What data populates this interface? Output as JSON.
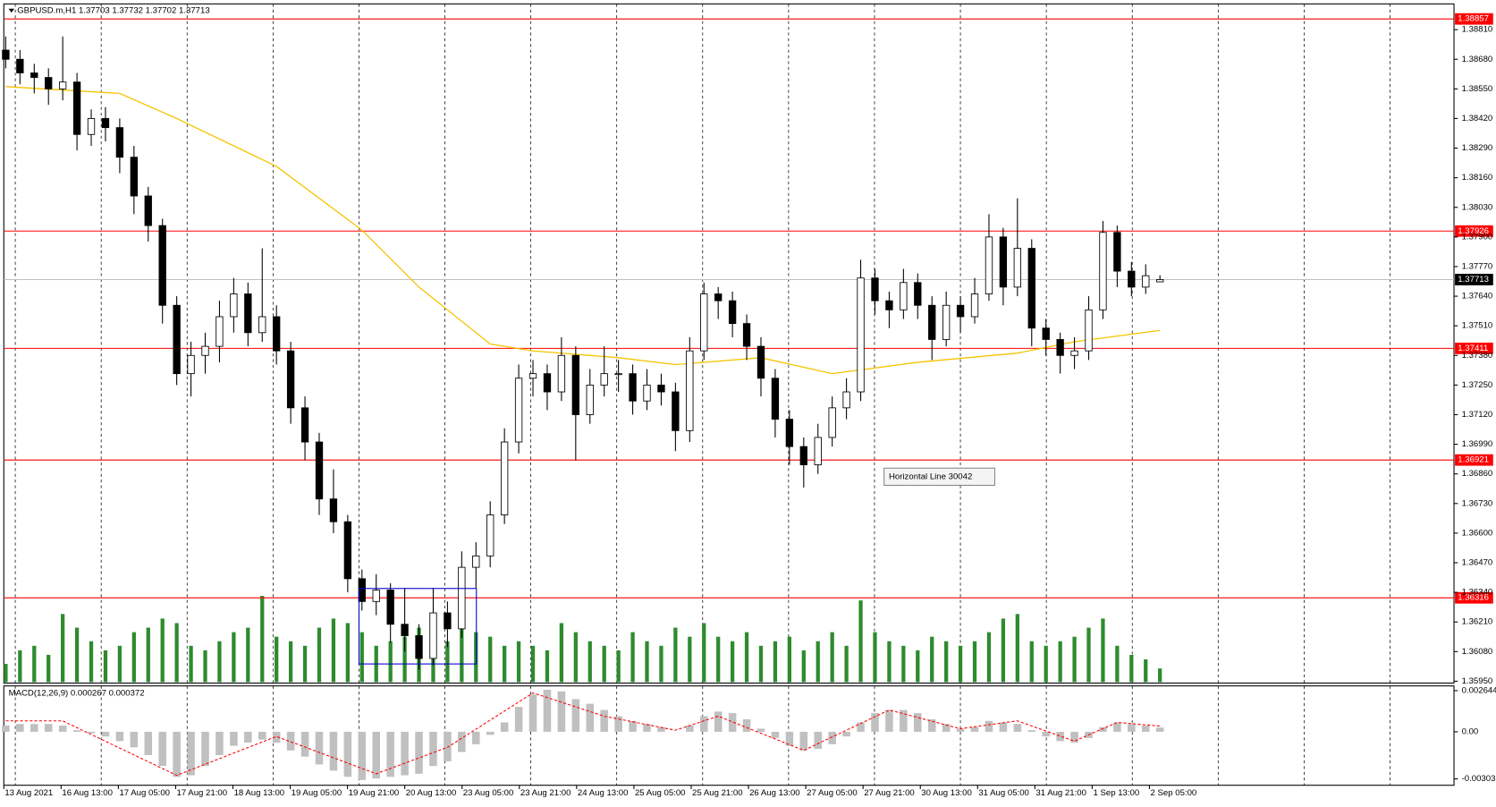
{
  "chart_data": {
    "type": "candlestick",
    "header": "GBPUSD.m,H1  1.37703 1.37732 1.37702 1.37713",
    "macd_title": "MACD(12,26,9) 0.000267 0.000372",
    "annotation": "Horizontal Line 30042",
    "x_labels": [
      "13 Aug 2021",
      "16 Aug 13:00",
      "17 Aug 05:00",
      "17 Aug 21:00",
      "18 Aug 13:00",
      "19 Aug 05:00",
      "19 Aug 21:00",
      "20 Aug 13:00",
      "23 Aug 05:00",
      "23 Aug 21:00",
      "24 Aug 13:00",
      "25 Aug 05:00",
      "25 Aug 21:00",
      "26 Aug 13:00",
      "27 Aug 05:00",
      "27 Aug 21:00",
      "30 Aug 13:00",
      "31 Aug 05:00",
      "31 Aug 21:00",
      "1 Sep 13:00",
      "2 Sep 05:00"
    ],
    "candles": [
      [
        1.3872,
        1.3878,
        1.3864,
        1.3868
      ],
      [
        1.3868,
        1.3872,
        1.3857,
        1.3862
      ],
      [
        1.3862,
        1.3866,
        1.3853,
        1.386
      ],
      [
        1.386,
        1.3864,
        1.3848,
        1.3855
      ],
      [
        1.3855,
        1.3878,
        1.385,
        1.3858
      ],
      [
        1.3858,
        1.3862,
        1.3828,
        1.3835
      ],
      [
        1.3835,
        1.3846,
        1.383,
        1.3842
      ],
      [
        1.3842,
        1.3847,
        1.3832,
        1.3838
      ],
      [
        1.3838,
        1.3842,
        1.3818,
        1.3825
      ],
      [
        1.3825,
        1.383,
        1.38,
        1.3808
      ],
      [
        1.3808,
        1.3812,
        1.3788,
        1.3795
      ],
      [
        1.3795,
        1.3798,
        1.3752,
        1.376
      ],
      [
        1.376,
        1.3764,
        1.3725,
        1.373
      ],
      [
        1.373,
        1.3744,
        1.372,
        1.3738
      ],
      [
        1.3738,
        1.3748,
        1.373,
        1.3742
      ],
      [
        1.3742,
        1.3762,
        1.3735,
        1.3755
      ],
      [
        1.3755,
        1.3772,
        1.3748,
        1.3765
      ],
      [
        1.3765,
        1.377,
        1.3742,
        1.3748
      ],
      [
        1.3748,
        1.3785,
        1.3744,
        1.3755
      ],
      [
        1.3755,
        1.376,
        1.3734,
        1.374
      ],
      [
        1.374,
        1.3744,
        1.3708,
        1.3715
      ],
      [
        1.3715,
        1.372,
        1.3692,
        1.37
      ],
      [
        1.37,
        1.3704,
        1.3668,
        1.3675
      ],
      [
        1.3675,
        1.3688,
        1.366,
        1.3665
      ],
      [
        1.3665,
        1.3668,
        1.3634,
        1.364
      ],
      [
        1.364,
        1.3644,
        1.3626,
        1.363
      ],
      [
        1.363,
        1.3642,
        1.3624,
        1.3635
      ],
      [
        1.3635,
        1.3638,
        1.3612,
        1.362
      ],
      [
        1.362,
        1.3636,
        1.3608,
        1.3615
      ],
      [
        1.3615,
        1.362,
        1.36,
        1.3605
      ],
      [
        1.3605,
        1.3636,
        1.3602,
        1.3625
      ],
      [
        1.3625,
        1.363,
        1.361,
        1.3618
      ],
      [
        1.3618,
        1.3652,
        1.3614,
        1.3645
      ],
      [
        1.3645,
        1.3656,
        1.3636,
        1.365
      ],
      [
        1.365,
        1.3674,
        1.3645,
        1.3668
      ],
      [
        1.3668,
        1.3706,
        1.3664,
        1.37
      ],
      [
        1.37,
        1.3734,
        1.3695,
        1.3728
      ],
      [
        1.3728,
        1.3736,
        1.372,
        1.373
      ],
      [
        1.373,
        1.3734,
        1.3714,
        1.3722
      ],
      [
        1.3722,
        1.3746,
        1.3718,
        1.3738
      ],
      [
        1.3738,
        1.3742,
        1.3692,
        1.3712
      ],
      [
        1.3712,
        1.3732,
        1.3708,
        1.3725
      ],
      [
        1.3725,
        1.3742,
        1.372,
        1.373
      ],
      [
        1.373,
        1.3736,
        1.3722,
        1.373
      ],
      [
        1.373,
        1.3734,
        1.3712,
        1.3718
      ],
      [
        1.3718,
        1.3732,
        1.3714,
        1.3725
      ],
      [
        1.3725,
        1.373,
        1.3716,
        1.3722
      ],
      [
        1.3722,
        1.3726,
        1.3696,
        1.3705
      ],
      [
        1.3705,
        1.3746,
        1.37,
        1.374
      ],
      [
        1.374,
        1.377,
        1.3736,
        1.3765
      ],
      [
        1.3765,
        1.3768,
        1.3754,
        1.3762
      ],
      [
        1.3762,
        1.3766,
        1.3746,
        1.3752
      ],
      [
        1.3752,
        1.3756,
        1.3736,
        1.3742
      ],
      [
        1.3742,
        1.3746,
        1.372,
        1.3728
      ],
      [
        1.3728,
        1.3732,
        1.3702,
        1.371
      ],
      [
        1.371,
        1.3714,
        1.369,
        1.3698
      ],
      [
        1.3698,
        1.3702,
        1.368,
        1.369
      ],
      [
        1.369,
        1.3708,
        1.3686,
        1.3702
      ],
      [
        1.3702,
        1.372,
        1.3698,
        1.3715
      ],
      [
        1.3715,
        1.3728,
        1.371,
        1.3722
      ],
      [
        1.3722,
        1.378,
        1.3718,
        1.3772
      ],
      [
        1.3772,
        1.3776,
        1.3756,
        1.3762
      ],
      [
        1.3762,
        1.3766,
        1.375,
        1.3758
      ],
      [
        1.3758,
        1.3776,
        1.3754,
        1.377
      ],
      [
        1.377,
        1.3774,
        1.3754,
        1.376
      ],
      [
        1.376,
        1.3764,
        1.3736,
        1.3745
      ],
      [
        1.3745,
        1.3766,
        1.3742,
        1.376
      ],
      [
        1.376,
        1.3764,
        1.3748,
        1.3755
      ],
      [
        1.3755,
        1.3772,
        1.3752,
        1.3765
      ],
      [
        1.3765,
        1.38,
        1.3762,
        1.379
      ],
      [
        1.379,
        1.3794,
        1.376,
        1.3768
      ],
      [
        1.3768,
        1.3807,
        1.3764,
        1.3785
      ],
      [
        1.3785,
        1.3789,
        1.3742,
        1.375
      ],
      [
        1.375,
        1.3754,
        1.3738,
        1.3745
      ],
      [
        1.3745,
        1.3748,
        1.373,
        1.3738
      ],
      [
        1.3738,
        1.3746,
        1.3732,
        1.374
      ],
      [
        1.374,
        1.3764,
        1.3736,
        1.3758
      ],
      [
        1.3758,
        1.3797,
        1.3754,
        1.3792
      ],
      [
        1.3792,
        1.3795,
        1.3768,
        1.3775
      ],
      [
        1.3775,
        1.3779,
        1.3764,
        1.3768
      ],
      [
        1.3768,
        1.3778,
        1.3765,
        1.3773
      ],
      [
        1.37703,
        1.37732,
        1.37702,
        1.37713
      ]
    ],
    "up_color": "#ffffff",
    "down_color": "#000000",
    "volumes": [
      20,
      35,
      40,
      30,
      75,
      60,
      45,
      35,
      40,
      55,
      60,
      70,
      65,
      40,
      35,
      45,
      55,
      60,
      95,
      50,
      45,
      40,
      60,
      70,
      65,
      55,
      40,
      45,
      50,
      60,
      55,
      45,
      60,
      55,
      50,
      40,
      45,
      40,
      35,
      65,
      55,
      45,
      40,
      35,
      55,
      45,
      40,
      60,
      50,
      65,
      50,
      45,
      55,
      40,
      45,
      50,
      35,
      45,
      55,
      40,
      90,
      55,
      45,
      40,
      35,
      50,
      45,
      40,
      45,
      55,
      70,
      75,
      45,
      40,
      45,
      50,
      60,
      70,
      40,
      30,
      25,
      15
    ],
    "volume_color": "#2e8b2e",
    "ma": {
      "color": "#f5c400",
      "x": [
        0,
        8,
        12,
        19,
        25,
        29,
        34,
        37,
        43,
        47,
        53,
        58,
        64,
        71,
        75,
        81
      ],
      "values": [
        1.3856,
        1.3853,
        1.3842,
        1.3821,
        1.3793,
        1.3768,
        1.3743,
        1.374,
        1.3737,
        1.3734,
        1.3737,
        1.373,
        1.3735,
        1.3739,
        1.3744,
        1.3749
      ]
    },
    "hlines": {
      "color": "#ff0000",
      "values": [
        1.38857,
        1.37926,
        1.37411,
        1.36921,
        1.36316
      ]
    },
    "last_price": 1.37713,
    "ylim": [
      1.35942,
      1.38923
    ],
    "yticks": [
      {
        "value": 1.3881,
        "label": "1.38810"
      },
      {
        "value": 1.3868,
        "label": "1.38680"
      },
      {
        "value": 1.3855,
        "label": "1.38550"
      },
      {
        "value": 1.3842,
        "label": "1.38420"
      },
      {
        "value": 1.3829,
        "label": "1.38290"
      },
      {
        "value": 1.3816,
        "label": "1.38160"
      },
      {
        "value": 1.3803,
        "label": "1.38030"
      },
      {
        "value": 1.379,
        "label": "1.37900"
      },
      {
        "value": 1.3777,
        "label": "1.37770"
      },
      {
        "value": 1.3764,
        "label": "1.37640"
      },
      {
        "value": 1.3751,
        "label": "1.37510"
      },
      {
        "value": 1.3738,
        "label": "1.37380"
      },
      {
        "value": 1.3725,
        "label": "1.37250"
      },
      {
        "value": 1.3712,
        "label": "1.37120"
      },
      {
        "value": 1.3699,
        "label": "1.36990"
      },
      {
        "value": 1.3686,
        "label": "1.36860"
      },
      {
        "value": 1.3673,
        "label": "1.36730"
      },
      {
        "value": 1.366,
        "label": "1.36600"
      },
      {
        "value": 1.3647,
        "label": "1.36470"
      },
      {
        "value": 1.3634,
        "label": "1.36340"
      },
      {
        "value": 1.3621,
        "label": "1.36210"
      },
      {
        "value": 1.3608,
        "label": "1.36080"
      },
      {
        "value": 1.3595,
        "label": "1.35950"
      }
    ],
    "macd": {
      "ylim": [
        -0.00344,
        0.00295
      ],
      "yticks": [
        0.002644,
        {
          "value": 0,
          "label": "0.00"
        },
        -0.00303
      ],
      "histogram_color": "#c0c0c0",
      "histogram": [
        0.0004,
        0.0005,
        0.0005,
        0.0005,
        0.0004,
        0.0001,
        -0.0001,
        -0.0003,
        -0.0006,
        -0.001,
        -0.0015,
        -0.0022,
        -0.0029,
        -0.0028,
        -0.0022,
        -0.0015,
        -0.0009,
        -0.0007,
        -0.0005,
        -0.0007,
        -0.0012,
        -0.0016,
        -0.0021,
        -0.0025,
        -0.0029,
        -0.0031,
        -0.003,
        -0.0029,
        -0.0028,
        -0.0027,
        -0.0022,
        -0.0019,
        -0.0013,
        -0.0008,
        -0.0002,
        0.0006,
        0.0016,
        0.0024,
        0.0027,
        0.0026,
        0.0021,
        0.0018,
        0.0014,
        0.001,
        0.0007,
        0.0005,
        0.0003,
        0,
        0.0004,
        0.001,
        0.0013,
        0.0012,
        0.0008,
        0.0002,
        -0.0004,
        -0.0009,
        -0.0012,
        -0.0011,
        -0.0008,
        -0.0003,
        0.0006,
        0.0012,
        0.0014,
        0.0014,
        0.0012,
        0.0008,
        0.0005,
        0.0002,
        0.0003,
        0.0007,
        0.0006,
        0.0005,
        0.0001,
        -0.0003,
        -0.0006,
        -0.0007,
        -0.0004,
        0.0003,
        0.0006,
        0.0005,
        0.0004,
        0.000267
      ],
      "signal": {
        "color": "#ff0000",
        "x": [
          0,
          4,
          12,
          19,
          26,
          31,
          37,
          42,
          47,
          50,
          56,
          62,
          67,
          71,
          75,
          78,
          81
        ],
        "values": [
          0.0007,
          0.0007,
          -0.0028,
          -0.0003,
          -0.0027,
          -0.001,
          0.0025,
          0.001,
          0.0001,
          0.001,
          -0.0012,
          0.0014,
          0.0002,
          0.0007,
          -0.0006,
          0.0006,
          0.000372
        ]
      }
    }
  }
}
